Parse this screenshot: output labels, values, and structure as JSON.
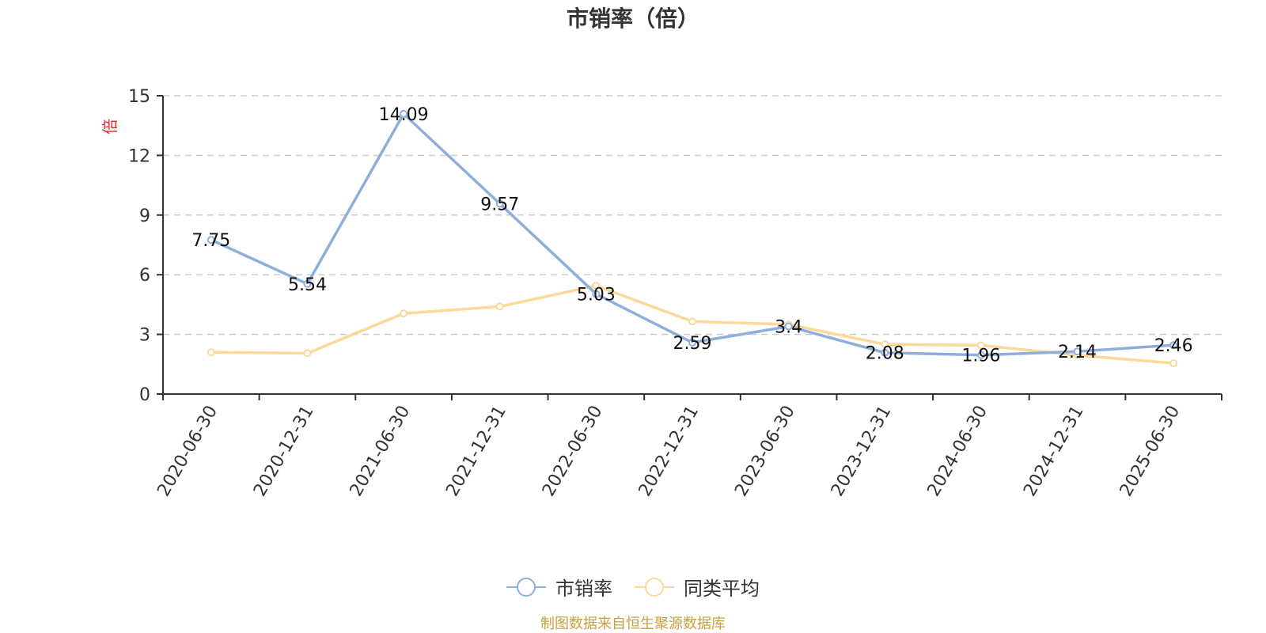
{
  "chart_data": {
    "type": "line",
    "title": "市销率（倍）",
    "ylabel": "倍",
    "xlabel": "",
    "ylim": [
      0,
      15
    ],
    "yticks": [
      0,
      3,
      6,
      9,
      12,
      15
    ],
    "grid": true,
    "legend_position": "bottom",
    "categories": [
      "2020-06-30",
      "2020-12-31",
      "2021-06-30",
      "2021-12-31",
      "2022-06-30",
      "2022-12-31",
      "2023-06-30",
      "2023-12-31",
      "2024-06-30",
      "2024-12-31",
      "2025-06-30"
    ],
    "series": [
      {
        "name": "市销率",
        "color": "#8eaedc",
        "values": [
          7.75,
          5.54,
          14.09,
          9.57,
          5.03,
          2.59,
          3.4,
          2.08,
          1.96,
          2.14,
          2.46
        ],
        "labels": [
          "7.75",
          "5.54",
          "14.09",
          "9.57",
          "5.03",
          "2.59",
          "3.4",
          "2.08",
          "1.96",
          "2.14",
          "2.46"
        ]
      },
      {
        "name": "同类平均",
        "color": "#fbd99b",
        "values": [
          2.1,
          2.05,
          4.05,
          4.4,
          5.45,
          3.65,
          3.5,
          2.5,
          2.45,
          1.95,
          1.55
        ]
      }
    ]
  },
  "source_note": "制图数据来自恒生聚源数据库",
  "colors": {
    "title": "#333333",
    "axis": "#333333",
    "grid": "#cccccc",
    "ylabel": "#e8262a",
    "source_note": "#c8a040"
  }
}
